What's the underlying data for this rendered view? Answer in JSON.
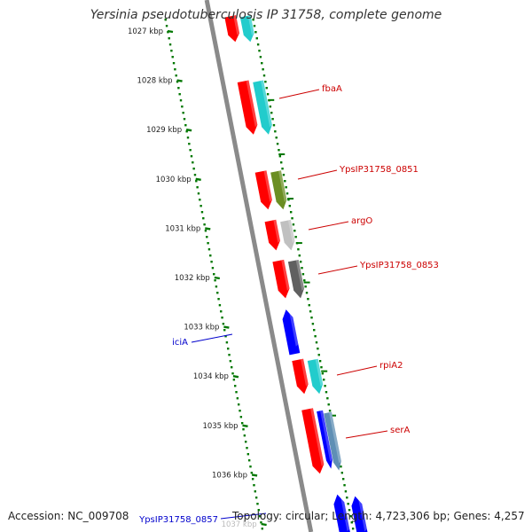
{
  "title": "Yersinia pseudotuberculosis IP 31758, complete genome",
  "accession_text": "Accession: NC_009708",
  "summary_text": "Topology: circular; Length: 4,723,306 bp; Genes: 4,257",
  "colors": {
    "forward_strand": "#ff0000",
    "reverse_strand": "#0000ff",
    "tick_green": "#007700",
    "backbone": "#8a8a8a",
    "label_red": "#cc0000",
    "label_blue": "#0000cc",
    "cyan": "#22cccc",
    "olive": "#6b8e23",
    "light_gray": "#c0c0c0",
    "dark_gray": "#606060",
    "steel_blue": "#5f8fb5"
  },
  "ticks": [
    {
      "label": "1027 kbp",
      "kbp": 1027
    },
    {
      "label": "1028 kbp",
      "kbp": 1028
    },
    {
      "label": "1029 kbp",
      "kbp": 1029
    },
    {
      "label": "1030 kbp",
      "kbp": 1030
    },
    {
      "label": "1031 kbp",
      "kbp": 1031
    },
    {
      "label": "1032 kbp",
      "kbp": 1032
    },
    {
      "label": "1033 kbp",
      "kbp": 1033
    },
    {
      "label": "1034 kbp",
      "kbp": 1034
    },
    {
      "label": "1035 kbp",
      "kbp": 1035
    },
    {
      "label": "1036 kbp",
      "kbp": 1036
    },
    {
      "label": "1037 kbp",
      "kbp": 1037
    }
  ],
  "genes": [
    {
      "name": "",
      "strand": "+",
      "start_kbp": 1026.7,
      "end_kbp": 1027.22,
      "companion": "cyan"
    },
    {
      "name": "fbaA",
      "strand": "+",
      "start_kbp": 1028.02,
      "end_kbp": 1029.1,
      "companion": "cyan"
    },
    {
      "name": "YpsIP31758_0851",
      "strand": "+",
      "start_kbp": 1029.85,
      "end_kbp": 1030.62,
      "companion": "olive"
    },
    {
      "name": "argO",
      "strand": "+",
      "start_kbp": 1030.85,
      "end_kbp": 1031.45,
      "companion": "light_gray"
    },
    {
      "name": "YpsIP31758_0853",
      "strand": "+",
      "start_kbp": 1031.66,
      "end_kbp": 1032.42,
      "companion": "dark_gray"
    },
    {
      "name": "rpiA2",
      "strand": "+",
      "start_kbp": 1033.67,
      "end_kbp": 1034.36,
      "companion": "cyan"
    },
    {
      "name": "serA",
      "strand": "+",
      "start_kbp": 1034.67,
      "end_kbp": 1035.98,
      "companion": "blue_steel"
    },
    {
      "name": "iciA",
      "strand": "-",
      "start_kbp": 1032.65,
      "end_kbp": 1033.55,
      "companion": ""
    },
    {
      "name": "YpsIP31758_0857",
      "strand": "-",
      "start_kbp": 1036.4,
      "end_kbp": 1037.3,
      "companion": ""
    }
  ]
}
